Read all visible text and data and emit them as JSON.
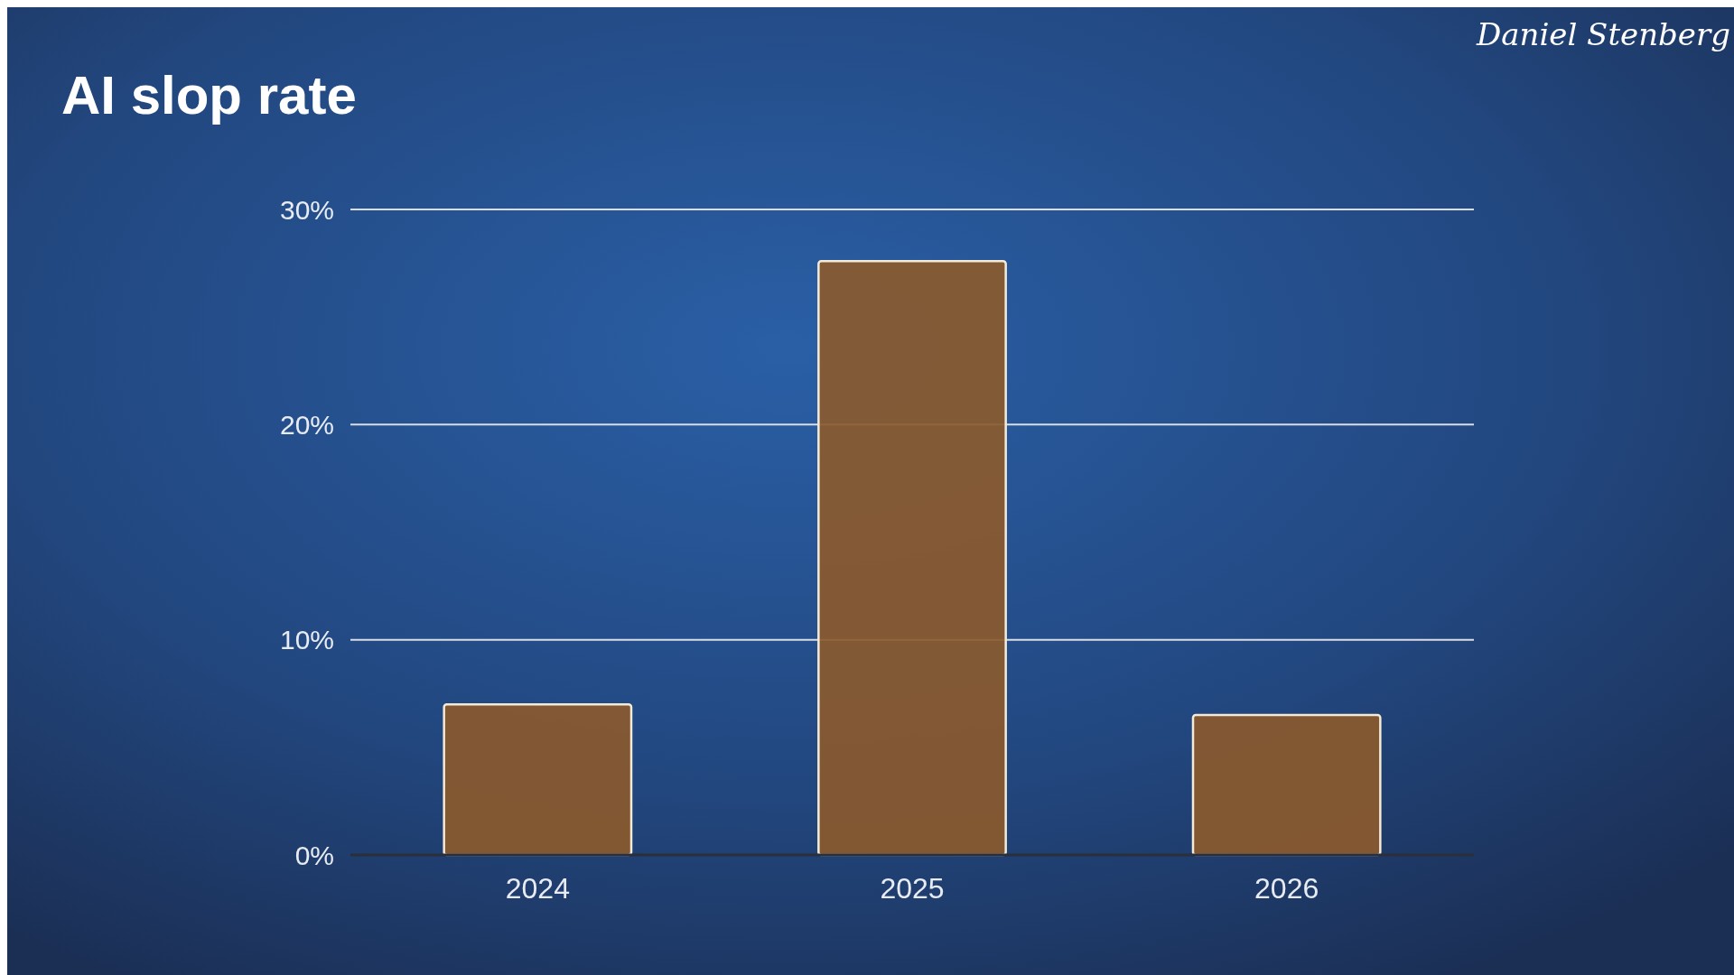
{
  "chart_data": {
    "type": "bar",
    "title": "AI slop rate",
    "categories": [
      "2024",
      "2025",
      "2026"
    ],
    "values": [
      7,
      27.6,
      6.5
    ],
    "color": "#8b5a2e",
    "ylim": [
      0,
      30
    ],
    "yticks": [
      {
        "value": 0,
        "label": "0%"
      },
      {
        "value": 10,
        "label": "10%"
      },
      {
        "value": 20,
        "label": "20%"
      },
      {
        "value": 30,
        "label": "30%"
      }
    ],
    "grid": "y",
    "annotations": [
      "Daniel Stenberg"
    ]
  }
}
